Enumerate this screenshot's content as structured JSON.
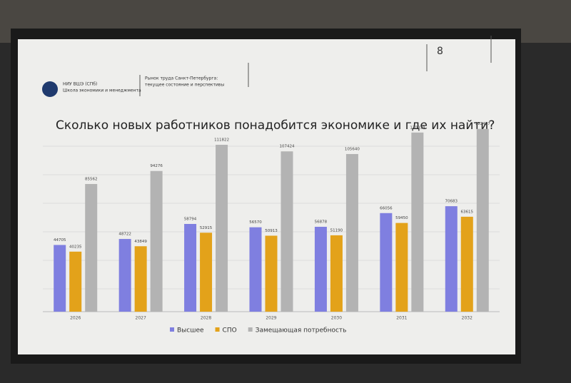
{
  "header": {
    "org_line1": "НИУ ВШЭ (СПб)",
    "org_line2": "Школа экономики и менеджмента",
    "topic_line1": "Рынок труда Санкт-Петербурга:",
    "topic_line2": "текущее состояние и перспективы",
    "page_number": "8"
  },
  "chart_data": {
    "type": "bar",
    "title": "Сколько новых работников понадобится экономике и где их найти?",
    "categories": [
      "2026",
      "2027",
      "2028",
      "2029",
      "2030",
      "2031",
      "2032"
    ],
    "series": [
      {
        "name": "Высшее",
        "color": "#7f7fe0",
        "values": [
          44705,
          48722,
          58794,
          56570,
          56878,
          66056,
          70683
        ]
      },
      {
        "name": "СПО",
        "color": "#e3a21a",
        "values": [
          40235,
          43849,
          52915,
          50913,
          51190,
          59450,
          63615
        ]
      },
      {
        "name": "Замещающая потребность",
        "color": "#b3b3b3",
        "values": [
          85562,
          94276,
          111822,
          107424,
          105640,
          120039,
          122487
        ]
      }
    ],
    "ylim": [
      0,
      130000
    ],
    "legend": "bottom"
  }
}
